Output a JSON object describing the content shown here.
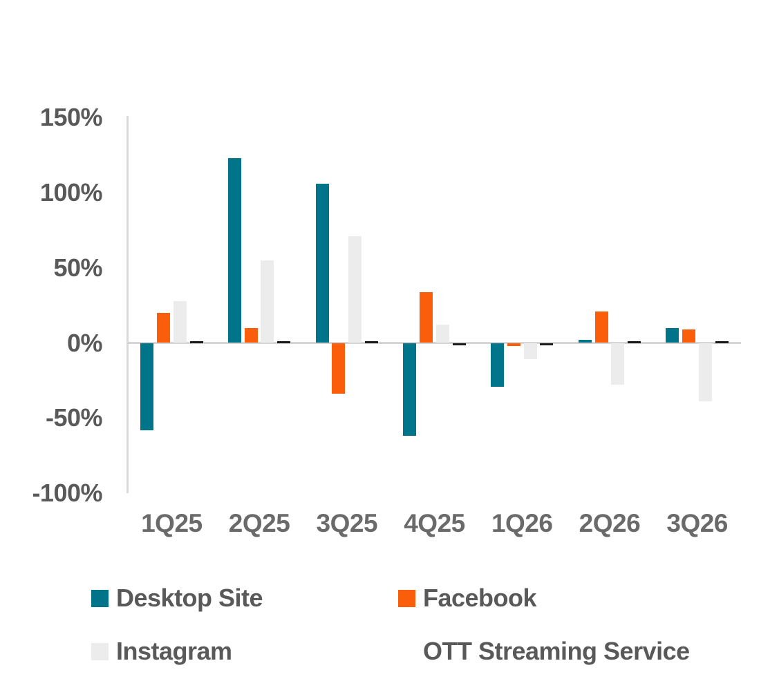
{
  "chart_data": {
    "type": "bar",
    "title": "",
    "xlabel": "",
    "ylabel": "",
    "categories": [
      "1Q25",
      "2Q25",
      "3Q25",
      "4Q25",
      "1Q26",
      "2Q26",
      "3Q26"
    ],
    "series": [
      {
        "name": "Desktop Site",
        "color": "#00758a",
        "legend_swatch_visible": true,
        "values": [
          -58,
          123,
          106,
          -62,
          -29,
          2,
          10
        ]
      },
      {
        "name": "Facebook",
        "color": "#fa5e0b",
        "legend_swatch_visible": true,
        "values": [
          20,
          10,
          -34,
          34,
          -2,
          21,
          9
        ]
      },
      {
        "name": "Instagram",
        "color": "#ececec",
        "legend_swatch_visible": true,
        "values": [
          28,
          55,
          71,
          12,
          -11,
          -28,
          -39
        ]
      },
      {
        "name": "OTT Streaming Service",
        "color": "#1a1a1a",
        "legend_swatch_visible": false,
        "values": [
          1,
          1,
          1,
          -1,
          -1,
          1,
          1
        ]
      }
    ],
    "ylim": [
      -100,
      150
    ],
    "y_ticks": [
      {
        "label": "150%",
        "value": 150
      },
      {
        "label": "100%",
        "value": 100
      },
      {
        "label": "50%",
        "value": 50
      },
      {
        "label": "0%",
        "value": 0
      },
      {
        "label": "-50%",
        "value": -50
      },
      {
        "label": "-100%",
        "value": -100
      }
    ],
    "grid": "zero-line-only",
    "legend_position": "bottom-two-columns"
  },
  "style_colors": {
    "axis_line": "#d9d9d9",
    "tick_text": "#595959",
    "background": "#ffffff"
  }
}
